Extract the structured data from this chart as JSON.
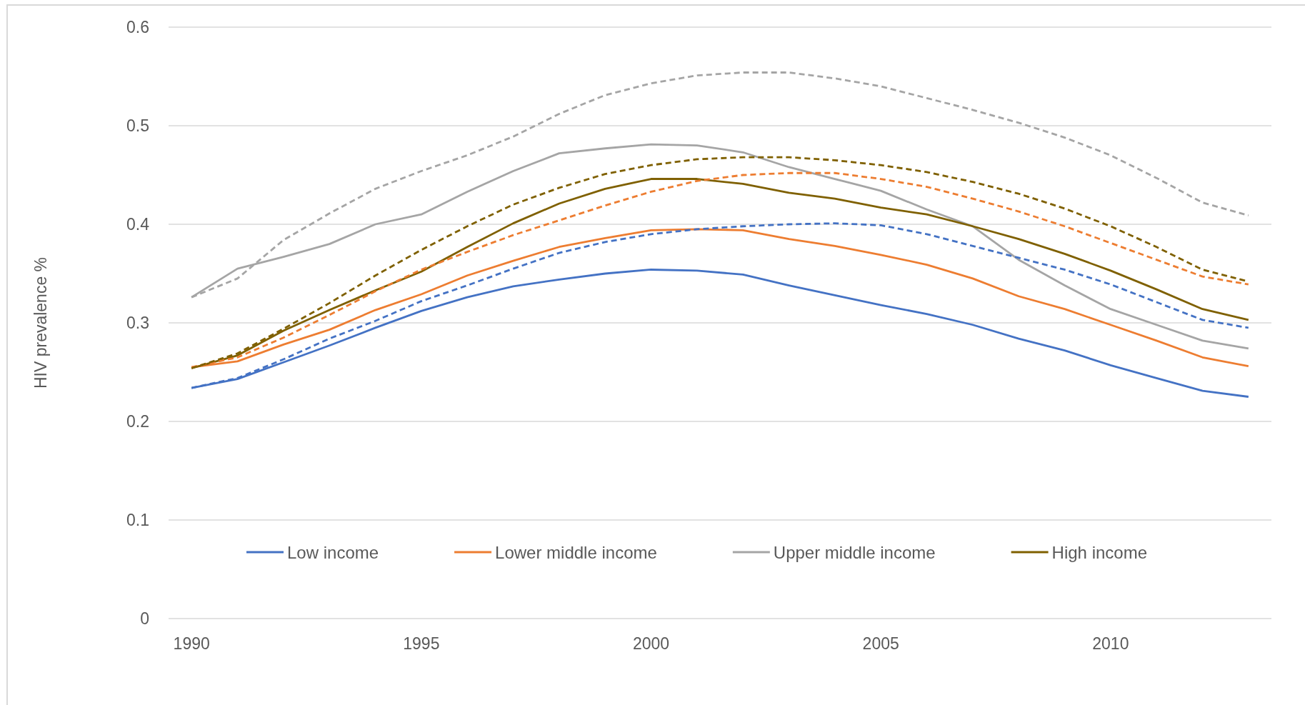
{
  "chart_data": {
    "type": "line",
    "ylabel": "HIV prevalence %",
    "x": [
      1990,
      1991,
      1992,
      1993,
      1994,
      1995,
      1996,
      1997,
      1998,
      1999,
      2000,
      2001,
      2002,
      2003,
      2004,
      2005,
      2006,
      2007,
      2008,
      2009,
      2010,
      2011,
      2012,
      2013
    ],
    "xlim": [
      1989.5,
      2013.5
    ],
    "xticks": [
      1990,
      1995,
      2000,
      2005,
      2010
    ],
    "ylim": [
      0,
      0.6
    ],
    "yticks": [
      0,
      0.1,
      0.2,
      0.3,
      0.4,
      0.5,
      0.6
    ],
    "grid": "y",
    "legend": "bottom",
    "marker": "none",
    "line_style": "solid",
    "series": [
      {
        "name": "Low income",
        "color": "#4472c4",
        "values": [
          0.234,
          0.243,
          0.26,
          0.277,
          0.295,
          0.312,
          0.326,
          0.337,
          0.344,
          0.35,
          0.354,
          0.353,
          0.349,
          0.338,
          0.328,
          0.318,
          0.309,
          0.298,
          0.284,
          0.272,
          0.257,
          0.244,
          0.231,
          0.225
        ]
      },
      {
        "name": "Lower middle income",
        "color": "#ed7d31",
        "values": [
          0.255,
          0.261,
          0.278,
          0.293,
          0.313,
          0.329,
          0.348,
          0.363,
          0.377,
          0.386,
          0.394,
          0.395,
          0.394,
          0.385,
          0.378,
          0.369,
          0.359,
          0.345,
          0.327,
          0.314,
          0.298,
          0.282,
          0.265,
          0.256
        ]
      },
      {
        "name": "Upper middle income",
        "color": "#a5a5a5",
        "values": [
          0.326,
          0.355,
          0.367,
          0.38,
          0.4,
          0.41,
          0.433,
          0.454,
          0.472,
          0.477,
          0.481,
          0.48,
          0.473,
          0.458,
          0.446,
          0.434,
          0.415,
          0.398,
          0.364,
          0.338,
          0.314,
          0.298,
          0.282,
          0.274
        ]
      },
      {
        "name": "High income",
        "color": "#7f6000",
        "values": [
          0.254,
          0.267,
          0.292,
          0.313,
          0.333,
          0.352,
          0.377,
          0.401,
          0.421,
          0.436,
          0.446,
          0.446,
          0.441,
          0.432,
          0.426,
          0.417,
          0.41,
          0.398,
          0.385,
          0.37,
          0.353,
          0.334,
          0.314,
          0.303
        ]
      },
      {
        "color": "#4472c4",
        "line_style": "dashed",
        "values": [
          0.234,
          0.244,
          0.263,
          0.284,
          0.302,
          0.322,
          0.338,
          0.355,
          0.371,
          0.382,
          0.39,
          0.395,
          0.398,
          0.4,
          0.401,
          0.399,
          0.39,
          0.378,
          0.366,
          0.354,
          0.339,
          0.321,
          0.303,
          0.295
        ]
      },
      {
        "color": "#ed7d31",
        "line_style": "dashed",
        "values": [
          0.255,
          0.265,
          0.285,
          0.308,
          0.332,
          0.354,
          0.372,
          0.389,
          0.404,
          0.419,
          0.433,
          0.444,
          0.45,
          0.452,
          0.452,
          0.446,
          0.438,
          0.426,
          0.413,
          0.398,
          0.381,
          0.364,
          0.347,
          0.339
        ]
      },
      {
        "color": "#a5a5a5",
        "line_style": "dashed",
        "values": [
          0.326,
          0.345,
          0.384,
          0.411,
          0.436,
          0.454,
          0.47,
          0.489,
          0.512,
          0.531,
          0.543,
          0.551,
          0.554,
          0.554,
          0.548,
          0.54,
          0.528,
          0.516,
          0.503,
          0.488,
          0.47,
          0.447,
          0.422,
          0.409
        ]
      },
      {
        "color": "#7f6000",
        "line_style": "dashed",
        "values": [
          0.254,
          0.269,
          0.294,
          0.32,
          0.348,
          0.374,
          0.398,
          0.42,
          0.437,
          0.451,
          0.46,
          0.466,
          0.468,
          0.468,
          0.465,
          0.46,
          0.453,
          0.443,
          0.431,
          0.416,
          0.398,
          0.377,
          0.354,
          0.342
        ]
      }
    ]
  }
}
